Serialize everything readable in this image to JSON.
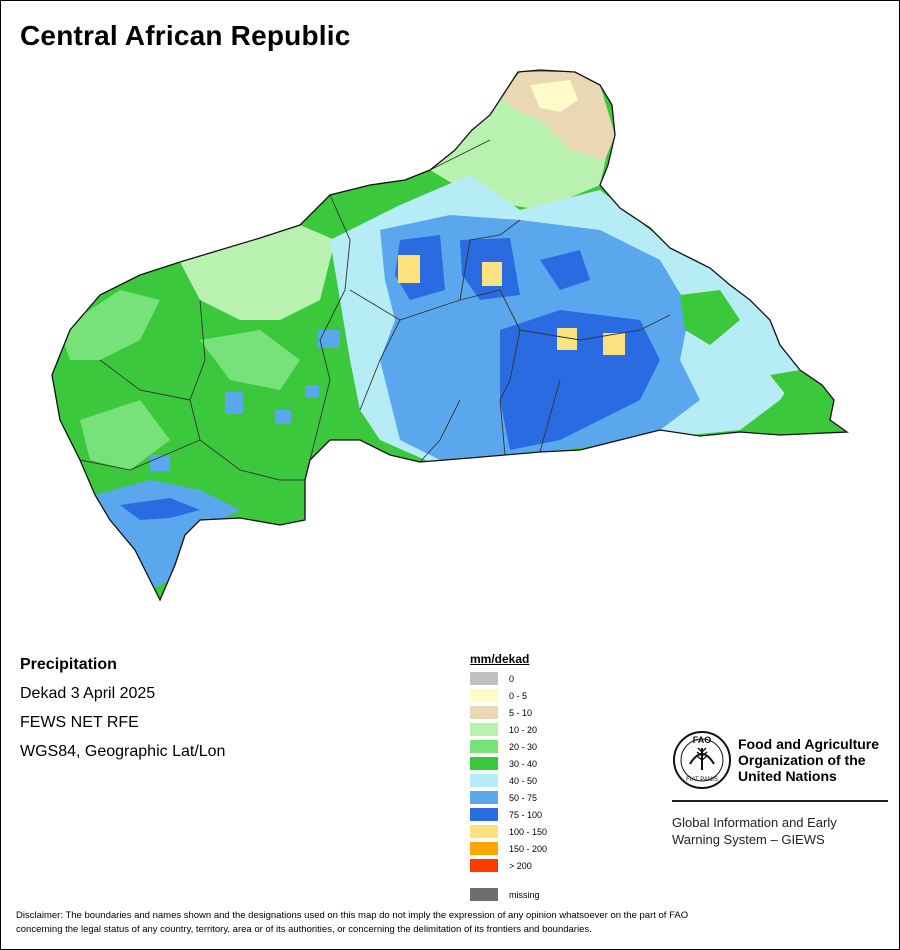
{
  "title": "Central African Republic",
  "info": {
    "heading": "Precipitation",
    "period": "Dekad 3 April 2025",
    "source": "FEWS NET RFE",
    "projection": "WGS84, Geographic Lat/Lon"
  },
  "legend": {
    "title": "mm/dekad",
    "classes": [
      {
        "label": "0",
        "color": "#c0c0c0"
      },
      {
        "label": "0 - 5",
        "color": "#fffbc8"
      },
      {
        "label": "5 - 10",
        "color": "#ead7b4"
      },
      {
        "label": "10 - 20",
        "color": "#b9f2b0"
      },
      {
        "label": "20 - 30",
        "color": "#78e27a"
      },
      {
        "label": "30 - 40",
        "color": "#3cc83c"
      },
      {
        "label": "40 - 50",
        "color": "#b6ecf5"
      },
      {
        "label": "50 - 75",
        "color": "#5aa7ee"
      },
      {
        "label": "75 - 100",
        "color": "#2a6be2"
      },
      {
        "label": "100 - 150",
        "color": "#fbe27e"
      },
      {
        "label": "150 - 200",
        "color": "#ffa500"
      },
      {
        "label": "> 200",
        "color": "#ff3c00"
      }
    ],
    "missing": {
      "label": "missing",
      "color": "#6e6e6e"
    }
  },
  "fao": {
    "name_line1": "Food and Agriculture",
    "name_line2": "Organization of the",
    "name_line3": "United Nations",
    "logo_text_top": "FAO",
    "logo_text_bottom": "FIAT PANIS",
    "giews_line1": "Global Information and Early",
    "giews_line2": "Warning System – GIEWS"
  },
  "disclaimer_line1": "Disclaimer: The boundaries and names shown and the designations used on this map do not imply the expression of any opinion whatsoever on the part of FAO",
  "disclaimer_line2": "concerning the legal status of any country, territory, area or of its authorities, or concerning the delimitation of its frontiers and boundaries."
}
